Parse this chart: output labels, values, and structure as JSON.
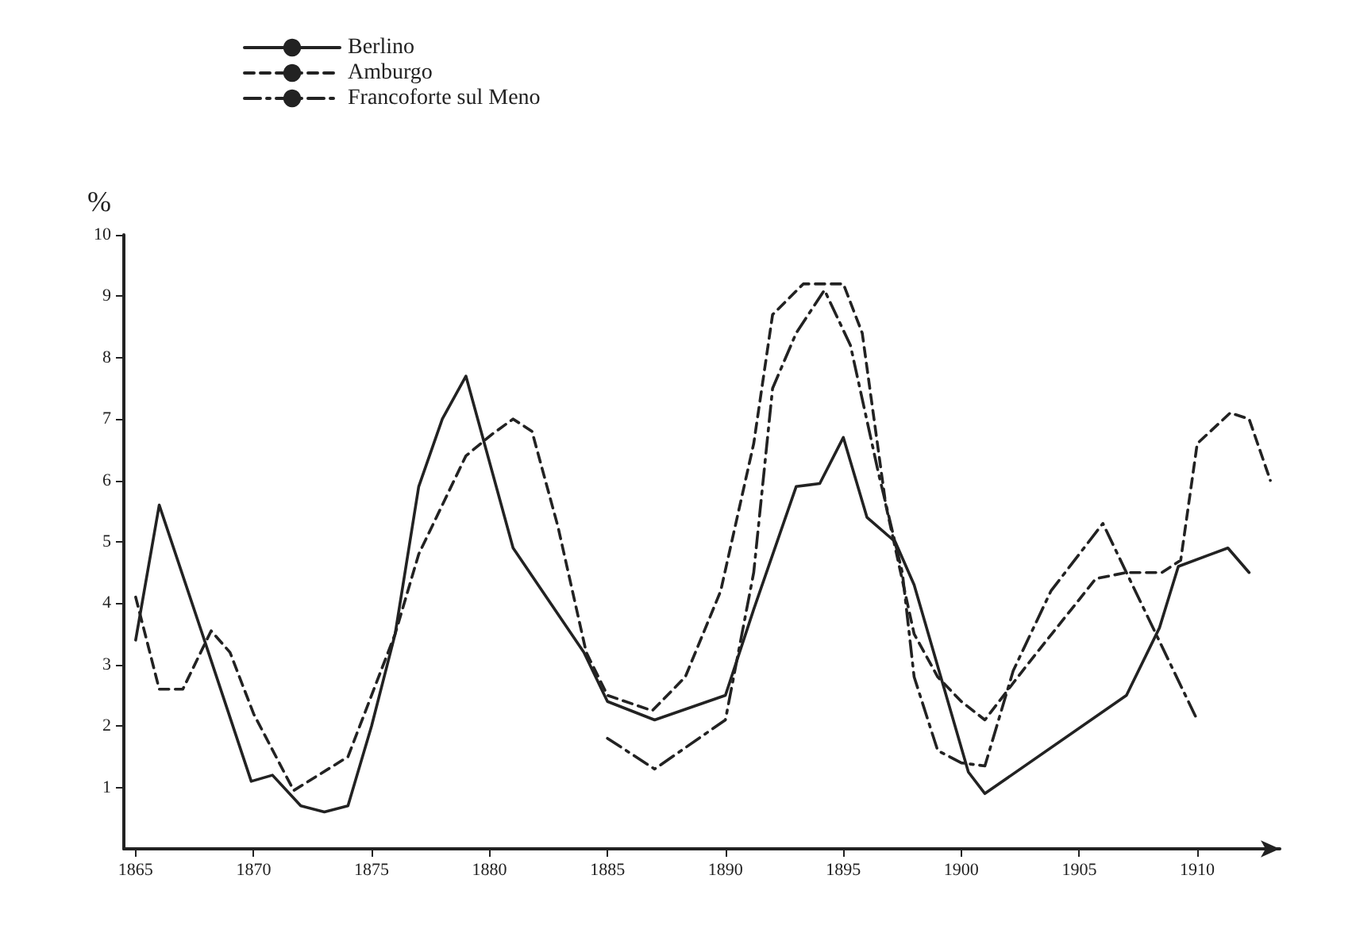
{
  "chart_data": {
    "type": "line",
    "ylabel": "%",
    "xlim": [
      1864.5,
      1913.5
    ],
    "xticks": [
      1865,
      1870,
      1875,
      1880,
      1885,
      1890,
      1895,
      1900,
      1905,
      1910
    ],
    "ylim": [
      0,
      10
    ],
    "yticks": [
      1,
      2,
      3,
      4,
      5,
      6,
      7,
      8,
      9,
      10
    ],
    "grid": false,
    "legend": "top",
    "marker": "none",
    "series": [
      {
        "name": "Berlino",
        "color": "#222222",
        "line_style": "solid",
        "x": [
          1865,
          1866,
          1868,
          1869.9,
          1870.8,
          1872,
          1873,
          1874,
          1875,
          1876,
          1877,
          1878,
          1879,
          1881,
          1884,
          1885,
          1887,
          1890,
          1891.2,
          1893,
          1894,
          1895,
          1896,
          1897.2,
          1898,
          1900.3,
          1901,
          1907,
          1908.4,
          1909.2,
          1911.3,
          1912.2
        ],
        "values": [
          3.4,
          5.6,
          3.3,
          1.1,
          1.2,
          0.7,
          0.6,
          0.7,
          2.0,
          3.5,
          5.9,
          7.0,
          7.7,
          4.9,
          3.2,
          2.4,
          2.1,
          2.5,
          3.9,
          5.9,
          5.95,
          6.7,
          5.4,
          5.0,
          4.3,
          1.25,
          0.9,
          2.5,
          3.6,
          4.6,
          4.9,
          4.5
        ]
      },
      {
        "name": "Amburgo",
        "color": "#222222",
        "line_style": "dashed",
        "x": [
          1865,
          1866,
          1867,
          1868.2,
          1869,
          1870,
          1871.7,
          1874,
          1876,
          1877,
          1879,
          1880.1,
          1881,
          1881.8,
          1882.9,
          1884.1,
          1885,
          1886.9,
          1888.3,
          1889.8,
          1891.2,
          1892,
          1893.3,
          1895,
          1895.8,
          1896.8,
          1898,
          1899,
          1900,
          1901,
          1902.8,
          1905.7,
          1907,
          1908.5,
          1909.3,
          1910,
          1911.4,
          1912.2,
          1913.1
        ],
        "values": [
          4.1,
          2.6,
          2.6,
          3.55,
          3.2,
          2.2,
          0.95,
          1.5,
          3.5,
          4.8,
          6.4,
          6.75,
          7.0,
          6.8,
          5.25,
          3.2,
          2.5,
          2.25,
          2.8,
          4.2,
          6.6,
          8.7,
          9.2,
          9.2,
          8.4,
          5.6,
          3.5,
          2.8,
          2.4,
          2.1,
          3.0,
          4.4,
          4.5,
          4.5,
          4.7,
          6.6,
          7.1,
          7.0,
          6.0
        ]
      },
      {
        "name": "Francoforte sul Meno",
        "color": "#222222",
        "line_style": "dashdot",
        "x": [
          1885,
          1887,
          1890,
          1891.2,
          1892,
          1893,
          1894.2,
          1895.3,
          1896.5,
          1897.5,
          1898,
          1899,
          1900,
          1901,
          1902.2,
          1903.8,
          1906,
          1910
        ],
        "values": [
          1.8,
          1.3,
          2.1,
          4.5,
          7.5,
          8.4,
          9.1,
          8.2,
          6.1,
          4.5,
          2.8,
          1.6,
          1.4,
          1.35,
          2.9,
          4.2,
          5.3,
          2.1
        ]
      }
    ]
  }
}
